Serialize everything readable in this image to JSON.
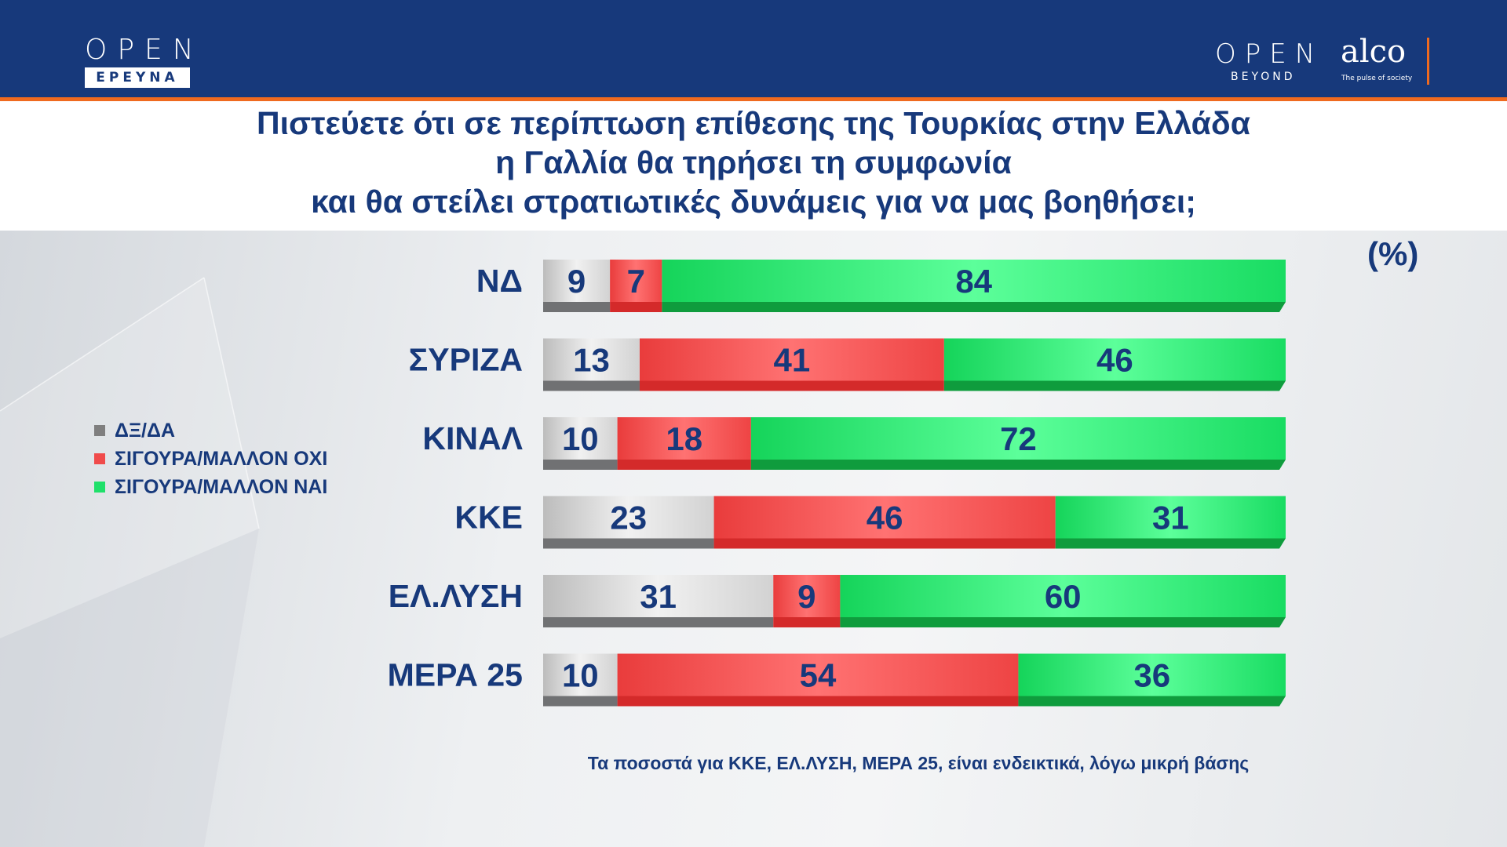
{
  "header": {
    "logo_left_open": "OPEN",
    "logo_left_sub": "ΕΡΕΥΝΑ",
    "logo_right_open": "OPEN",
    "logo_right_sub": "BEYOND",
    "logo_alco": "alco",
    "logo_alco_tagline": "The pulse of society"
  },
  "title_lines": [
    "Πιστεύετε ότι σε περίπτωση επίθεσης της Τουρκίας στην Ελλάδα",
    "η Γαλλία θα τηρήσει τη συμφωνία",
    "και θα στείλει στρατιωτικές δυνάμεις για να μας βοηθήσει;"
  ],
  "note": "Τα ποσοστά για ΚΚΕ, ΕΛ.ΛΥΣΗ, ΜΕΡΑ 25, είναι ενδεικτικά, λόγω μικρή βάσης",
  "colors": {
    "navy": "#17397b",
    "orange": "#ef6a1f",
    "grey": "#cfcfcf",
    "red": "#f04b4b",
    "green": "#1fe06a"
  },
  "chart_data": {
    "type": "bar",
    "orientation": "horizontal",
    "stacked": true,
    "unit_label": "(%)",
    "categories": [
      "ΝΔ",
      "ΣΥΡΙΖΑ",
      "ΚΙΝΑΛ",
      "ΚΚΕ",
      "ΕΛ.ΛΥΣΗ",
      "ΜΕΡΑ 25"
    ],
    "series": [
      {
        "name": "ΔΞ/ΔΑ",
        "color": "#cfcfcf",
        "values": [
          9,
          13,
          10,
          23,
          31,
          10
        ]
      },
      {
        "name": "ΣΙΓΟΥΡΑ/ΜΑΛΛΟΝ ΟΧΙ",
        "color": "#f04b4b",
        "values": [
          7,
          41,
          18,
          46,
          9,
          54
        ]
      },
      {
        "name": "ΣΙΓΟΥΡΑ/ΜΑΛΛΟΝ ΝΑΙ",
        "color": "#1fe06a",
        "values": [
          84,
          46,
          72,
          31,
          60,
          36
        ]
      }
    ],
    "xlim": [
      0,
      100
    ],
    "legend_position": "left"
  }
}
